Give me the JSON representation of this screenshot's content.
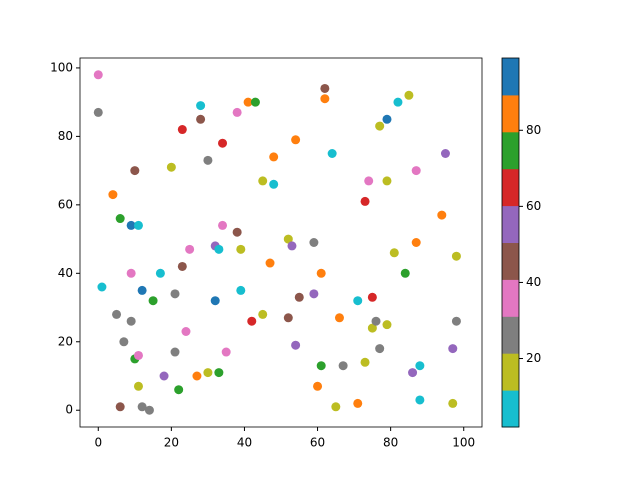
{
  "chart_data": {
    "type": "scatter",
    "x": [
      0,
      0,
      1,
      4,
      5,
      6,
      6,
      7,
      9,
      9,
      9,
      10,
      10,
      11,
      11,
      11,
      12,
      12,
      14,
      15,
      17,
      18,
      20,
      21,
      21,
      22,
      23,
      23,
      24,
      25,
      27,
      28,
      28,
      30,
      30,
      32,
      32,
      33,
      33,
      34,
      34,
      35,
      38,
      38,
      39,
      39,
      41,
      42,
      43,
      45,
      45,
      47,
      48,
      48,
      52,
      52,
      53,
      54,
      54,
      55,
      59,
      59,
      60,
      61,
      61,
      62,
      62,
      64,
      65,
      66,
      67,
      71,
      71,
      73,
      73,
      74,
      75,
      75,
      76,
      77,
      77,
      79,
      79,
      79,
      81,
      82,
      84,
      85,
      86,
      87,
      87,
      88,
      88,
      94,
      95,
      97,
      97,
      98,
      98
    ],
    "y": [
      98,
      87,
      36,
      63,
      28,
      56,
      1,
      20,
      54,
      40,
      26,
      70,
      15,
      16,
      54,
      7,
      35,
      1,
      0,
      32,
      40,
      10,
      71,
      34,
      17,
      6,
      82,
      42,
      23,
      47,
      10,
      85,
      89,
      73,
      11,
      48,
      32,
      47,
      11,
      78,
      54,
      17,
      87,
      52,
      47,
      35,
      90,
      26,
      90,
      67,
      28,
      43,
      74,
      66,
      50,
      27,
      48,
      79,
      19,
      33,
      49,
      34,
      7,
      40,
      13,
      94,
      91,
      75,
      1,
      27,
      13,
      32,
      2,
      61,
      14,
      67,
      33,
      24,
      26,
      83,
      18,
      85,
      67,
      25,
      46,
      90,
      40,
      92,
      11,
      70,
      49,
      13,
      3,
      57,
      75,
      18,
      2,
      45,
      26
    ],
    "colors": [
      "#e377c2",
      "#7f7f7f",
      "#17becf",
      "#ff7f0e",
      "#7f7f7f",
      "#2ca02c",
      "#8c564b",
      "#7f7f7f",
      "#1f77b4",
      "#e377c2",
      "#7f7f7f",
      "#8c564b",
      "#2ca02c",
      "#e377c2",
      "#17becf",
      "#bcbd22",
      "#1f77b4",
      "#7f7f7f",
      "#7f7f7f",
      "#2ca02c",
      "#17becf",
      "#9467bd",
      "#bcbd22",
      "#7f7f7f",
      "#7f7f7f",
      "#2ca02c",
      "#d62728",
      "#8c564b",
      "#e377c2",
      "#e377c2",
      "#ff7f0e",
      "#8c564b",
      "#17becf",
      "#7f7f7f",
      "#bcbd22",
      "#9467bd",
      "#1f77b4",
      "#17becf",
      "#2ca02c",
      "#d62728",
      "#e377c2",
      "#e377c2",
      "#e377c2",
      "#8c564b",
      "#bcbd22",
      "#17becf",
      "#ff7f0e",
      "#d62728",
      "#2ca02c",
      "#bcbd22",
      "#bcbd22",
      "#ff7f0e",
      "#ff7f0e",
      "#17becf",
      "#bcbd22",
      "#8c564b",
      "#9467bd",
      "#ff7f0e",
      "#9467bd",
      "#8c564b",
      "#7f7f7f",
      "#9467bd",
      "#ff7f0e",
      "#ff7f0e",
      "#2ca02c",
      "#8c564b",
      "#ff7f0e",
      "#17becf",
      "#bcbd22",
      "#ff7f0e",
      "#7f7f7f",
      "#17becf",
      "#ff7f0e",
      "#d62728",
      "#bcbd22",
      "#e377c2",
      "#d62728",
      "#bcbd22",
      "#7f7f7f",
      "#bcbd22",
      "#7f7f7f",
      "#1f77b4",
      "#bcbd22",
      "#bcbd22",
      "#bcbd22",
      "#17becf",
      "#2ca02c",
      "#bcbd22",
      "#9467bd",
      "#e377c2",
      "#ff7f0e",
      "#17becf",
      "#17becf",
      "#ff7f0e",
      "#9467bd",
      "#9467bd",
      "#bcbd22",
      "#bcbd22",
      "#7f7f7f"
    ],
    "xlim": [
      -5,
      105
    ],
    "ylim": [
      -4.9,
      102.9
    ],
    "xticks": [
      0,
      20,
      40,
      60,
      80,
      100
    ],
    "yticks": [
      0,
      20,
      40,
      60,
      80,
      100
    ],
    "colorbar": {
      "clim": [
        2,
        99
      ],
      "ticks": [
        20,
        40,
        60,
        80
      ],
      "colormap": [
        "#17becf",
        "#bcbd22",
        "#7f7f7f",
        "#e377c2",
        "#8c564b",
        "#9467bd",
        "#d62728",
        "#2ca02c",
        "#ff7f0e",
        "#1f77b4"
      ]
    }
  }
}
